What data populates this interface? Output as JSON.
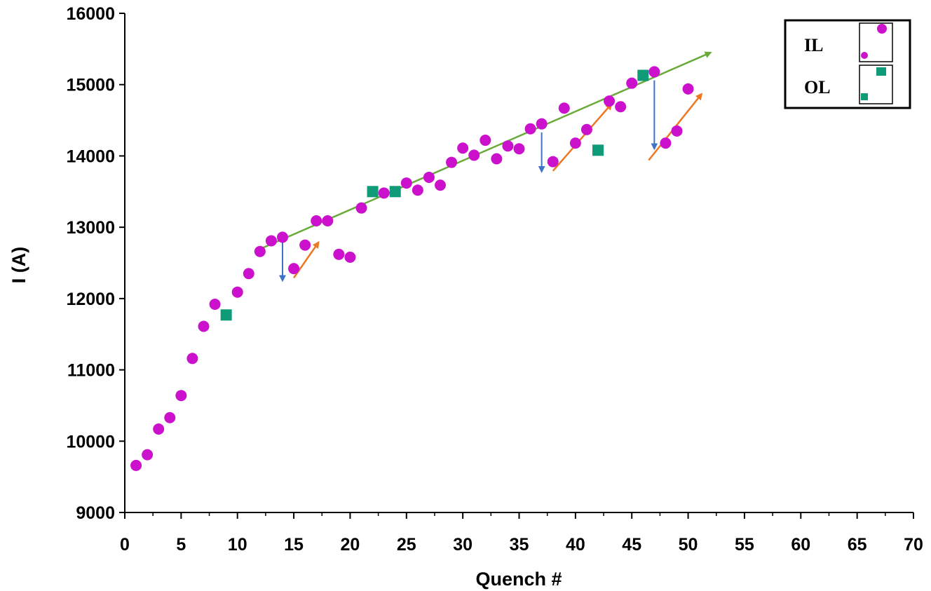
{
  "chart_data": {
    "type": "scatter",
    "xlabel": "Quench #",
    "ylabel": "I (A)",
    "xlim": [
      0,
      70
    ],
    "ylim": [
      9000,
      16000
    ],
    "x_ticks": [
      "0",
      "5",
      "10",
      "15",
      "20",
      "25",
      "30",
      "35",
      "40",
      "45",
      "50",
      "55",
      "60",
      "65",
      "70"
    ],
    "y_ticks": [
      "9000",
      "10000",
      "11000",
      "12000",
      "13000",
      "14000",
      "15000",
      "16000"
    ],
    "grid": false,
    "legend_position": "top-right",
    "series": [
      {
        "name": "IL",
        "marker": "circle",
        "color": "#cc11cc",
        "points": [
          [
            1,
            9660
          ],
          [
            2,
            9810
          ],
          [
            3,
            10170
          ],
          [
            4,
            10330
          ],
          [
            5,
            10640
          ],
          [
            6,
            11160
          ],
          [
            7,
            11610
          ],
          [
            8,
            11920
          ],
          [
            10,
            12090
          ],
          [
            11,
            12350
          ],
          [
            12,
            12660
          ],
          [
            13,
            12810
          ],
          [
            14,
            12860
          ],
          [
            15,
            12420
          ],
          [
            16,
            12750
          ],
          [
            17,
            13090
          ],
          [
            18,
            13090
          ],
          [
            19,
            12620
          ],
          [
            20,
            12580
          ],
          [
            21,
            13270
          ],
          [
            23,
            13480
          ],
          [
            25,
            13620
          ],
          [
            26,
            13520
          ],
          [
            27,
            13700
          ],
          [
            28,
            13590
          ],
          [
            29,
            13910
          ],
          [
            30,
            14110
          ],
          [
            31,
            14010
          ],
          [
            32,
            14220
          ],
          [
            33,
            13960
          ],
          [
            34,
            14140
          ],
          [
            35,
            14100
          ],
          [
            36,
            14380
          ],
          [
            37,
            14450
          ],
          [
            38,
            13920
          ],
          [
            39,
            14670
          ],
          [
            40,
            14180
          ],
          [
            41,
            14370
          ],
          [
            43,
            14770
          ],
          [
            44,
            14690
          ],
          [
            45,
            15020
          ],
          [
            47,
            15180
          ],
          [
            48,
            14180
          ],
          [
            49,
            14350
          ],
          [
            50,
            14940
          ]
        ]
      },
      {
        "name": "OL",
        "marker": "square",
        "color": "#0f9a78",
        "points": [
          [
            9,
            11770
          ],
          [
            22,
            13500
          ],
          [
            24,
            13500
          ],
          [
            42,
            14080
          ],
          [
            46,
            15130
          ]
        ]
      }
    ],
    "annotations": {
      "trend_line": {
        "color": "#6aaa3a",
        "from": [
          11.5,
          12660
        ],
        "to": [
          52,
          15450
        ]
      },
      "down_arrows": {
        "color": "#3f73c8",
        "items": [
          {
            "x": 14,
            "from": 12820,
            "to": 12250
          },
          {
            "x": 37,
            "from": 14330,
            "to": 13780
          },
          {
            "x": 47,
            "from": 15060,
            "to": 14100
          }
        ]
      },
      "up_arrows": {
        "color": "#ee7722",
        "items": [
          {
            "from": [
              15,
              12290
            ],
            "to": [
              17.2,
              12790
            ]
          },
          {
            "from": [
              38,
              13790
            ],
            "to": [
              43.2,
              14730
            ]
          },
          {
            "from": [
              46.5,
              13940
            ],
            "to": [
              51.2,
              14870
            ]
          }
        ]
      }
    }
  }
}
